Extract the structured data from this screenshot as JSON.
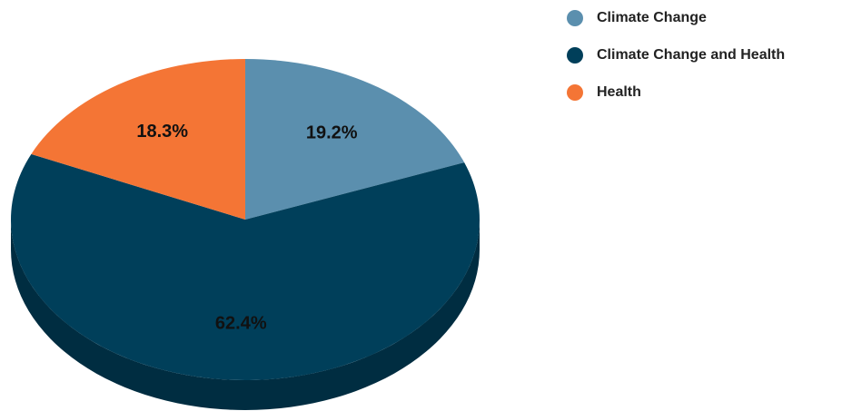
{
  "chart_data": {
    "type": "pie",
    "categories": [
      "Climate Change",
      "Climate Change and Health",
      "Health"
    ],
    "values": [
      19.2,
      62.4,
      18.3
    ],
    "value_labels": [
      "19.2%",
      "62.4%",
      "18.3%"
    ],
    "colors": [
      "#5b8fae",
      "#003f5a",
      "#f47535"
    ],
    "legend": "top-right"
  }
}
